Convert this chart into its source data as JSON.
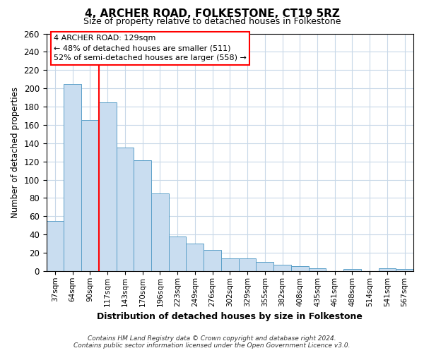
{
  "title": "4, ARCHER ROAD, FOLKESTONE, CT19 5RZ",
  "subtitle": "Size of property relative to detached houses in Folkestone",
  "xlabel": "Distribution of detached houses by size in Folkestone",
  "ylabel": "Number of detached properties",
  "bar_labels": [
    "37sqm",
    "64sqm",
    "90sqm",
    "117sqm",
    "143sqm",
    "170sqm",
    "196sqm",
    "223sqm",
    "249sqm",
    "276sqm",
    "302sqm",
    "329sqm",
    "355sqm",
    "382sqm",
    "408sqm",
    "435sqm",
    "461sqm",
    "488sqm",
    "514sqm",
    "541sqm",
    "567sqm"
  ],
  "bar_values": [
    55,
    205,
    165,
    185,
    135,
    121,
    85,
    38,
    30,
    23,
    14,
    14,
    10,
    7,
    5,
    3,
    0,
    2,
    0,
    3,
    2
  ],
  "bar_color": "#c9ddf0",
  "bar_edge_color": "#5a9fc8",
  "ylim": [
    0,
    260
  ],
  "yticks": [
    0,
    20,
    40,
    60,
    80,
    100,
    120,
    140,
    160,
    180,
    200,
    220,
    240,
    260
  ],
  "red_line_x": 2.5,
  "annotation_title": "4 ARCHER ROAD: 129sqm",
  "annotation_line1": "← 48% of detached houses are smaller (511)",
  "annotation_line2": "52% of semi-detached houses are larger (558) →",
  "footnote1": "Contains HM Land Registry data © Crown copyright and database right 2024.",
  "footnote2": "Contains public sector information licensed under the Open Government Licence v3.0.",
  "background_color": "#ffffff",
  "grid_color": "#c8d8e8"
}
